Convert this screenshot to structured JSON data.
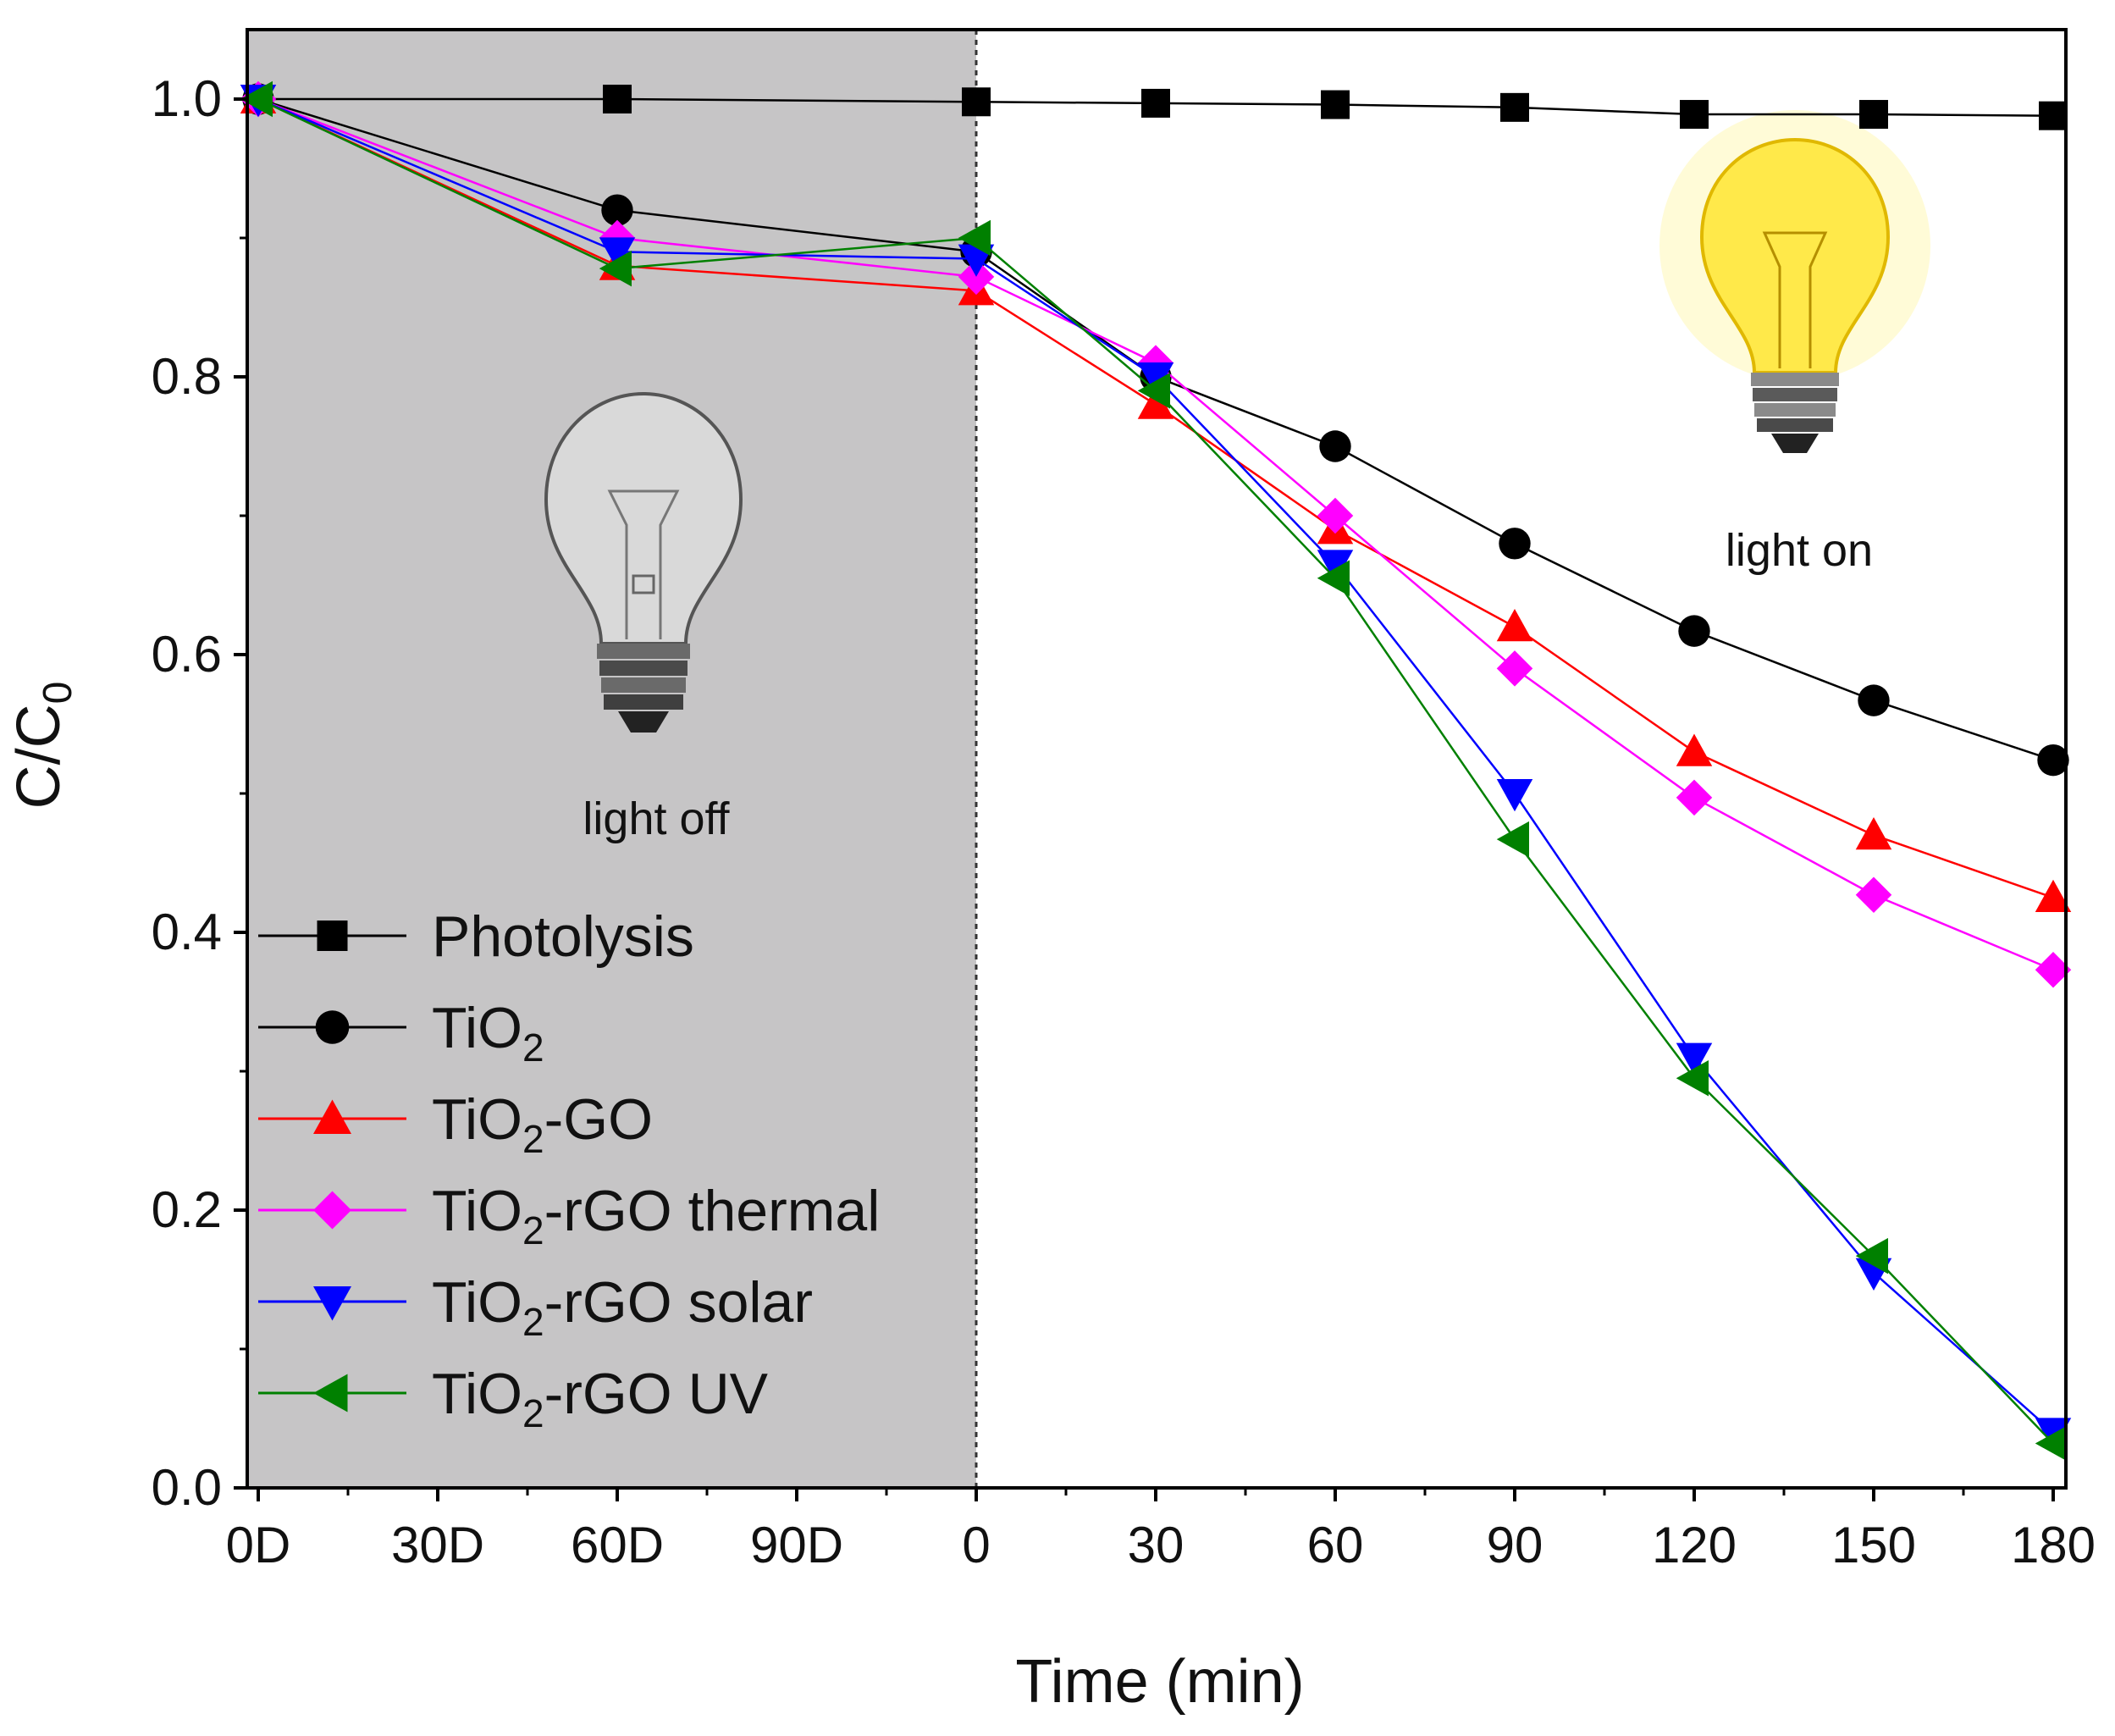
{
  "chart_data": {
    "type": "line",
    "title": "",
    "xlabel": "Time (min)",
    "ylabel_main": "C/C",
    "ylabel_sub": "0",
    "x_ticks": [
      "0D",
      "30D",
      "60D",
      "90D",
      "0",
      "30",
      "60",
      "90",
      "120",
      "150",
      "180"
    ],
    "x_positions": [
      0,
      1,
      2,
      3,
      4,
      5,
      6,
      7,
      8,
      9,
      10
    ],
    "xlim": [
      -0.05,
      10.1
    ],
    "y_ticks": [
      "0.0",
      "0.2",
      "0.4",
      "0.6",
      "0.8",
      "1.0"
    ],
    "y_tick_values": [
      0.0,
      0.2,
      0.4,
      0.6,
      0.8,
      1.0
    ],
    "ylim": [
      0.0,
      1.05
    ],
    "dark_region": [
      0,
      4
    ],
    "annotations": {
      "dark_label": "light off",
      "light_label": "light on"
    },
    "series": [
      {
        "name": "Photolysis",
        "base": "",
        "sub": "",
        "suffix": "",
        "label_text": "Photolysis",
        "color": "#000000",
        "marker": "square",
        "x": [
          0,
          2,
          4,
          5,
          6,
          7,
          8,
          9,
          10
        ],
        "values": [
          1.0,
          1.0,
          0.998,
          0.997,
          0.996,
          0.994,
          0.989,
          0.989,
          0.988
        ]
      },
      {
        "name": "TiO2",
        "base": "TiO",
        "sub": "2",
        "suffix": "",
        "color": "#000000",
        "marker": "circle",
        "x": [
          0,
          2,
          4,
          5,
          6,
          7,
          8,
          9,
          10
        ],
        "values": [
          1.0,
          0.92,
          0.89,
          0.8,
          0.75,
          0.68,
          0.617,
          0.567,
          0.524
        ]
      },
      {
        "name": "TiO2-GO",
        "base": "TiO",
        "sub": "2",
        "suffix": "-GO",
        "color": "#ff0000",
        "marker": "triangle-up",
        "x": [
          0,
          2,
          4,
          5,
          6,
          7,
          8,
          9,
          10
        ],
        "values": [
          1.0,
          0.88,
          0.862,
          0.78,
          0.69,
          0.62,
          0.53,
          0.47,
          0.425
        ]
      },
      {
        "name": "TiO2-rGO thermal",
        "base": "TiO",
        "sub": "2",
        "suffix": "-rGO thermal",
        "color": "#ff00ff",
        "marker": "diamond",
        "x": [
          0,
          2,
          4,
          5,
          6,
          7,
          8,
          9,
          10
        ],
        "values": [
          1.0,
          0.9,
          0.872,
          0.81,
          0.7,
          0.59,
          0.497,
          0.427,
          0.373
        ]
      },
      {
        "name": "TiO2-rGO solar",
        "base": "TiO",
        "sub": "2",
        "suffix": "-rGO solar",
        "color": "#0000ff",
        "marker": "triangle-down",
        "x": [
          0,
          2,
          4,
          5,
          6,
          7,
          8,
          9,
          10
        ],
        "values": [
          1.0,
          0.89,
          0.885,
          0.8,
          0.665,
          0.5,
          0.31,
          0.155,
          0.04
        ]
      },
      {
        "name": "TiO2-rGO UV",
        "base": "TiO",
        "sub": "2",
        "suffix": "-rGO UV",
        "color": "#008000",
        "marker": "triangle-left",
        "x": [
          0,
          2,
          4,
          5,
          6,
          7,
          8,
          9,
          10
        ],
        "values": [
          1.0,
          0.878,
          0.9,
          0.79,
          0.655,
          0.467,
          0.295,
          0.167,
          0.032
        ]
      }
    ]
  }
}
